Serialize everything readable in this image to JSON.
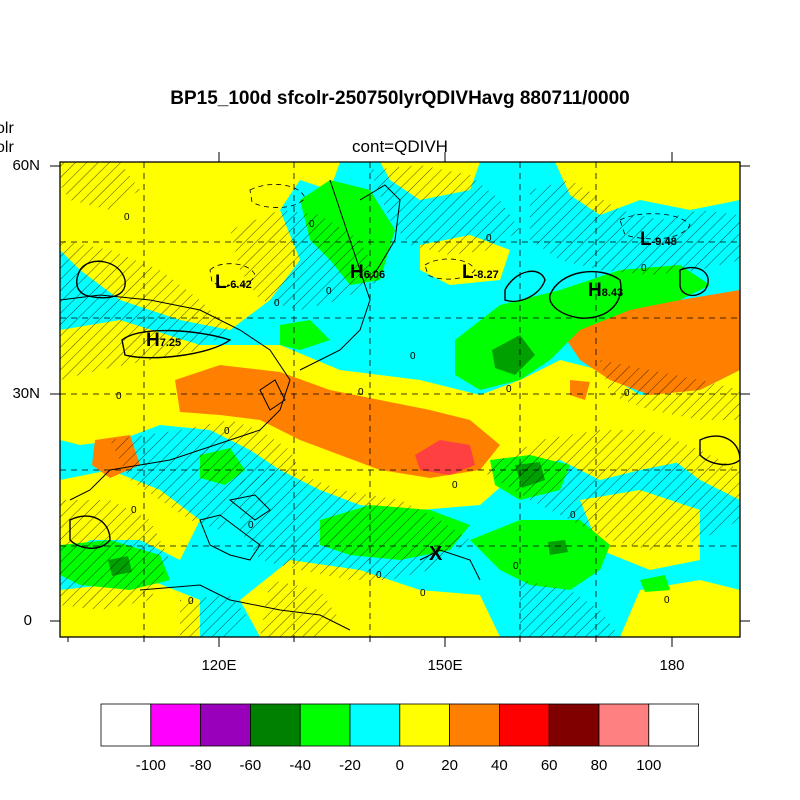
{
  "title": "BP15_100d sfcolr-250750lyrQDIVHavg  880711/0000",
  "subtitle": "cont=QDIVH",
  "left_texts": [
    "olr",
    "olr"
  ],
  "lat_labels": [
    "60N",
    "30N",
    "0"
  ],
  "lon_labels": [
    "120E",
    "150E",
    "180"
  ],
  "pressure_centers": [
    {
      "letter": "L",
      "value": "-6.42"
    },
    {
      "letter": "H",
      "value": "6.06"
    },
    {
      "letter": "L",
      "value": "-8.27"
    },
    {
      "letter": "L",
      "value": "-9.48"
    },
    {
      "letter": "H",
      "value": "8.43"
    },
    {
      "letter": "H",
      "value": "7.25"
    }
  ],
  "marker": "X",
  "contour_zero_label": "0",
  "colorbar": {
    "labels": [
      "-100",
      "-80",
      "-60",
      "-40",
      "-20",
      "0",
      "20",
      "40",
      "60",
      "80",
      "100"
    ],
    "colors": [
      "#ffffff",
      "#ff00ff",
      "#9900bb",
      "#008000",
      "#00ff00",
      "#00ffff",
      "#ffff00",
      "#ff8000",
      "#ff0000",
      "#800000",
      "#ff8080",
      "#ffffff"
    ]
  }
}
